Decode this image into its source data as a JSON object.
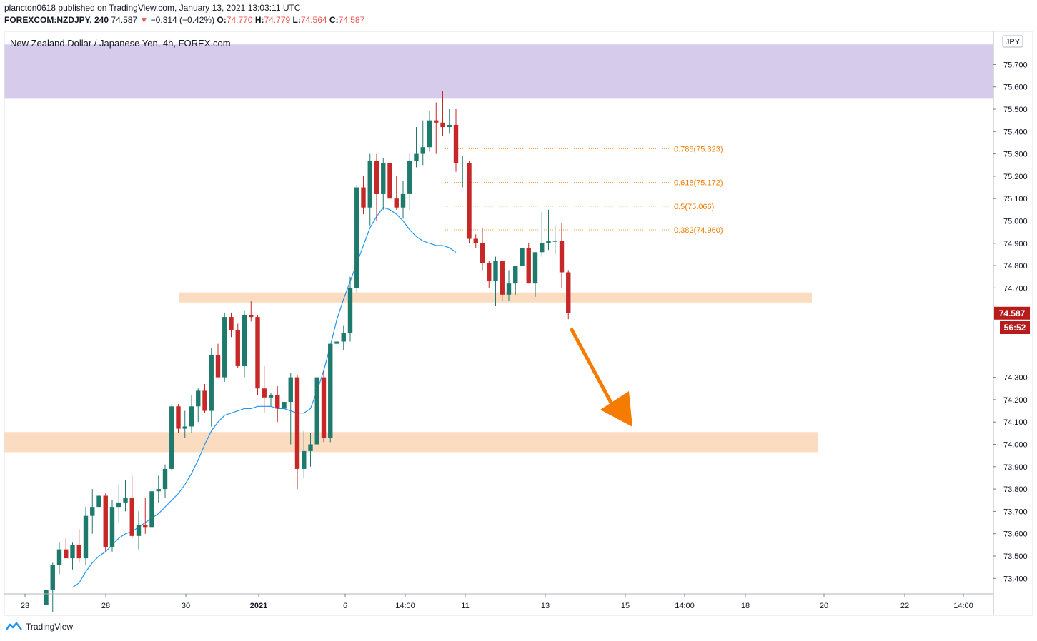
{
  "header": {
    "line1": "plancton0618 published on TradingView.com, January 13, 2021 13:03:11 UTC",
    "symbol": "FOREXCOM:NZDJPY, 240",
    "price": "74.587",
    "change_arrow": "▼",
    "change": "−0.314 (−0.42%)",
    "o_label": "O:",
    "o": "74.770",
    "h_label": "H:",
    "h": "74.779",
    "l_label": "L:",
    "l": "74.564",
    "c_label": "C:",
    "c": "74.587"
  },
  "legend_title": "New Zealand Dollar / Japanese Yen, 4h, FOREX.com",
  "currency_badge": "JPY",
  "last_price_label": "74.587",
  "countdown_label": "56:52",
  "footer_brand": "TradingView",
  "colors": {
    "up": "#26a69a",
    "up_body": "#1f7a6e",
    "down": "#c62828",
    "ma": "#2196f3",
    "supply_zone": "#d7cbec",
    "support_zone": "#fbdcc0",
    "fib": "#f57c00",
    "arrow": "#f57c00"
  },
  "chart_data": {
    "type": "candlestick",
    "title": "New Zealand Dollar / Japanese Yen, 4h, FOREX.com",
    "ylim": [
      73.35,
      75.85
    ],
    "y_ticks": [
      "75.700",
      "75.600",
      "75.500",
      "75.400",
      "75.300",
      "75.200",
      "75.100",
      "75.000",
      "74.900",
      "74.800",
      "74.700",
      "74.300",
      "74.200",
      "74.100",
      "74.000",
      "73.900",
      "73.800",
      "73.700",
      "73.600",
      "73.500",
      "73.400"
    ],
    "x_tick_labels": [
      "23",
      "28",
      "30",
      "2021",
      "6",
      "14:00",
      "11",
      "13",
      "15",
      "14:00",
      "18",
      "20",
      "22",
      "14:00"
    ],
    "candles": [
      [
        73.28,
        73.47,
        73.27,
        73.35
      ],
      [
        73.35,
        73.47,
        73.25,
        73.46
      ],
      [
        73.46,
        73.56,
        73.42,
        73.53
      ],
      [
        73.53,
        73.58,
        73.49,
        73.49
      ],
      [
        73.49,
        73.56,
        73.44,
        73.55
      ],
      [
        73.55,
        73.62,
        73.47,
        73.49
      ],
      [
        73.49,
        73.72,
        73.46,
        73.68
      ],
      [
        73.68,
        73.8,
        73.6,
        73.72
      ],
      [
        73.72,
        73.8,
        73.66,
        73.77
      ],
      [
        73.77,
        73.78,
        73.52,
        73.54
      ],
      [
        73.54,
        73.75,
        73.52,
        73.72
      ],
      [
        73.72,
        73.82,
        73.65,
        73.74
      ],
      [
        73.74,
        73.84,
        73.7,
        73.76
      ],
      [
        73.76,
        73.86,
        73.58,
        73.59
      ],
      [
        73.59,
        73.7,
        73.53,
        73.64
      ],
      [
        73.64,
        73.76,
        73.6,
        73.63
      ],
      [
        73.63,
        73.85,
        73.6,
        73.79
      ],
      [
        73.79,
        73.86,
        73.74,
        73.8
      ],
      [
        73.8,
        73.91,
        73.76,
        73.89
      ],
      [
        73.89,
        74.18,
        73.88,
        74.17
      ],
      [
        74.17,
        74.18,
        74.05,
        74.07
      ],
      [
        74.07,
        74.15,
        74.03,
        74.08
      ],
      [
        74.08,
        74.22,
        74.05,
        74.17
      ],
      [
        74.17,
        74.25,
        74.1,
        74.24
      ],
      [
        74.24,
        74.27,
        74.14,
        74.15
      ],
      [
        74.15,
        74.43,
        74.08,
        74.4
      ],
      [
        74.4,
        74.45,
        74.3,
        74.3
      ],
      [
        74.3,
        74.59,
        74.28,
        74.57
      ],
      [
        74.57,
        74.59,
        74.48,
        74.51
      ],
      [
        74.51,
        74.54,
        74.34,
        74.35
      ],
      [
        74.35,
        74.6,
        74.3,
        74.58
      ],
      [
        74.58,
        74.64,
        74.55,
        74.57
      ],
      [
        74.57,
        74.58,
        74.22,
        74.25
      ],
      [
        74.25,
        74.35,
        74.14,
        74.21
      ],
      [
        74.21,
        74.23,
        74.17,
        74.22
      ],
      [
        74.22,
        74.26,
        74.1,
        74.16
      ],
      [
        74.16,
        74.2,
        74.1,
        74.19
      ],
      [
        74.19,
        74.32,
        74.0,
        74.3
      ],
      [
        74.3,
        74.31,
        73.8,
        73.89
      ],
      [
        73.89,
        74.06,
        73.85,
        73.97
      ],
      [
        73.97,
        74.05,
        73.9,
        74.0
      ],
      [
        74.0,
        74.3,
        74.0,
        74.3
      ],
      [
        74.3,
        74.33,
        74.01,
        74.03
      ],
      [
        74.03,
        74.45,
        74.01,
        74.45
      ],
      [
        74.45,
        74.5,
        74.4,
        74.46
      ],
      [
        74.46,
        74.53,
        74.42,
        74.5
      ],
      [
        74.5,
        74.75,
        74.46,
        74.7
      ],
      [
        74.7,
        75.16,
        74.68,
        75.15
      ],
      [
        75.15,
        75.2,
        75.03,
        75.06
      ],
      [
        75.06,
        75.3,
        74.98,
        75.27
      ],
      [
        75.27,
        75.3,
        75.0,
        75.12
      ],
      [
        75.12,
        75.28,
        75.05,
        75.26
      ],
      [
        75.26,
        75.27,
        75.05,
        75.1
      ],
      [
        75.1,
        75.2,
        75.05,
        75.06
      ],
      [
        75.06,
        75.18,
        75.01,
        75.12
      ],
      [
        75.12,
        75.3,
        75.05,
        75.27
      ],
      [
        75.27,
        75.42,
        75.24,
        75.3
      ],
      [
        75.3,
        75.45,
        75.25,
        75.33
      ],
      [
        75.33,
        75.49,
        75.31,
        75.45
      ],
      [
        75.45,
        75.53,
        75.3,
        75.44
      ],
      [
        75.44,
        75.58,
        75.38,
        75.42
      ],
      [
        75.42,
        75.5,
        75.39,
        75.43
      ],
      [
        75.43,
        75.5,
        75.22,
        75.26
      ],
      [
        75.26,
        75.29,
        75.15,
        75.26
      ],
      [
        75.26,
        75.27,
        74.9,
        74.92
      ],
      [
        74.92,
        74.94,
        74.88,
        74.9
      ],
      [
        74.9,
        74.97,
        74.78,
        74.81
      ],
      [
        74.81,
        74.82,
        74.7,
        74.73
      ],
      [
        74.73,
        74.84,
        74.62,
        74.82
      ],
      [
        74.82,
        74.82,
        74.64,
        74.67
      ],
      [
        74.67,
        74.78,
        74.64,
        74.72
      ],
      [
        74.72,
        74.8,
        74.67,
        74.8
      ],
      [
        74.8,
        74.89,
        74.74,
        74.88
      ],
      [
        74.88,
        74.9,
        74.72,
        74.72
      ],
      [
        74.72,
        74.86,
        74.66,
        74.86
      ],
      [
        74.86,
        75.04,
        74.84,
        74.9
      ],
      [
        74.9,
        75.05,
        74.87,
        74.91
      ],
      [
        74.91,
        74.98,
        74.85,
        74.91
      ],
      [
        74.91,
        74.99,
        74.7,
        74.77
      ],
      [
        74.77,
        74.78,
        74.56,
        74.587
      ]
    ],
    "sma": [
      [
        73.36,
        73.38,
        73.43,
        73.47,
        73.5,
        73.52,
        73.55,
        73.58,
        73.6,
        73.61,
        73.63,
        73.65,
        73.67,
        73.69,
        73.72,
        73.75,
        73.78,
        73.82,
        73.87,
        73.93,
        74.0,
        74.06,
        74.1,
        74.13,
        74.14,
        74.15,
        74.16,
        74.16,
        74.17,
        74.17,
        74.17,
        74.16,
        74.16,
        74.15,
        74.14,
        74.14,
        74.16,
        74.24,
        74.33,
        74.44,
        74.56,
        74.65,
        74.73,
        74.81,
        74.89,
        74.97,
        75.02,
        75.06,
        75.05,
        75.03,
        75.0,
        74.96,
        74.93,
        74.91,
        74.9,
        74.89,
        74.89,
        74.88,
        74.86
      ]
    ],
    "fib_levels": [
      {
        "ratio": "0.786",
        "price": 75.323,
        "label": "0.786(75.323)"
      },
      {
        "ratio": "0.618",
        "price": 75.172,
        "label": "0.618(75.172)"
      },
      {
        "ratio": "0.5",
        "price": 75.066,
        "label": "0.5(75.066)"
      },
      {
        "ratio": "0.382",
        "price": 74.96,
        "label": "0.382(74.960)"
      }
    ],
    "zones": [
      {
        "name": "supply",
        "from": 75.55,
        "to": 75.79
      },
      {
        "name": "support-upper",
        "from": 74.635,
        "to": 74.68
      },
      {
        "name": "support-lower",
        "from": 73.965,
        "to": 74.055
      }
    ],
    "last_price": 74.587
  }
}
